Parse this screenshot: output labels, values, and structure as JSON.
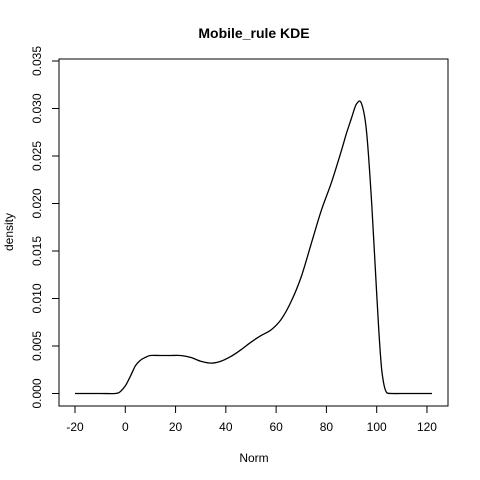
{
  "chart_data": {
    "type": "line",
    "title": "Mobile_rule  KDE",
    "xlabel": "Norm",
    "ylabel": "density",
    "xlim": [
      -20,
      122
    ],
    "ylim": [
      0,
      0.035
    ],
    "grid": false,
    "x_ticks": [
      "-20",
      "0",
      "20",
      "40",
      "60",
      "80",
      "100",
      "120"
    ],
    "y_ticks": [
      "0.000",
      "0.005",
      "0.010",
      "0.015",
      "0.020",
      "0.025",
      "0.030",
      "0.035"
    ],
    "series": [
      {
        "color": "#000000",
        "x": [
          -20,
          -10,
          -4,
          -2,
          0,
          2,
          4,
          6,
          8,
          10,
          14,
          18,
          22,
          26,
          30,
          34,
          38,
          42,
          46,
          50,
          54,
          58,
          62,
          66,
          70,
          74,
          78,
          82,
          86,
          88,
          90,
          92,
          94,
          96,
          98,
          100,
          101,
          102,
          103,
          104,
          106,
          110,
          122
        ],
        "y": [
          0.0,
          0.0,
          0.0,
          0.0002,
          0.0008,
          0.0018,
          0.0029,
          0.0035,
          0.0038,
          0.004,
          0.004,
          0.004,
          0.004,
          0.0038,
          0.0034,
          0.0032,
          0.0034,
          0.0039,
          0.0046,
          0.0054,
          0.0061,
          0.0067,
          0.0078,
          0.0097,
          0.0123,
          0.0158,
          0.0193,
          0.0222,
          0.0256,
          0.0274,
          0.029,
          0.0305,
          0.0305,
          0.0275,
          0.02,
          0.0105,
          0.006,
          0.0025,
          0.0008,
          0.0001,
          0.0,
          0.0,
          0.0
        ]
      }
    ]
  }
}
